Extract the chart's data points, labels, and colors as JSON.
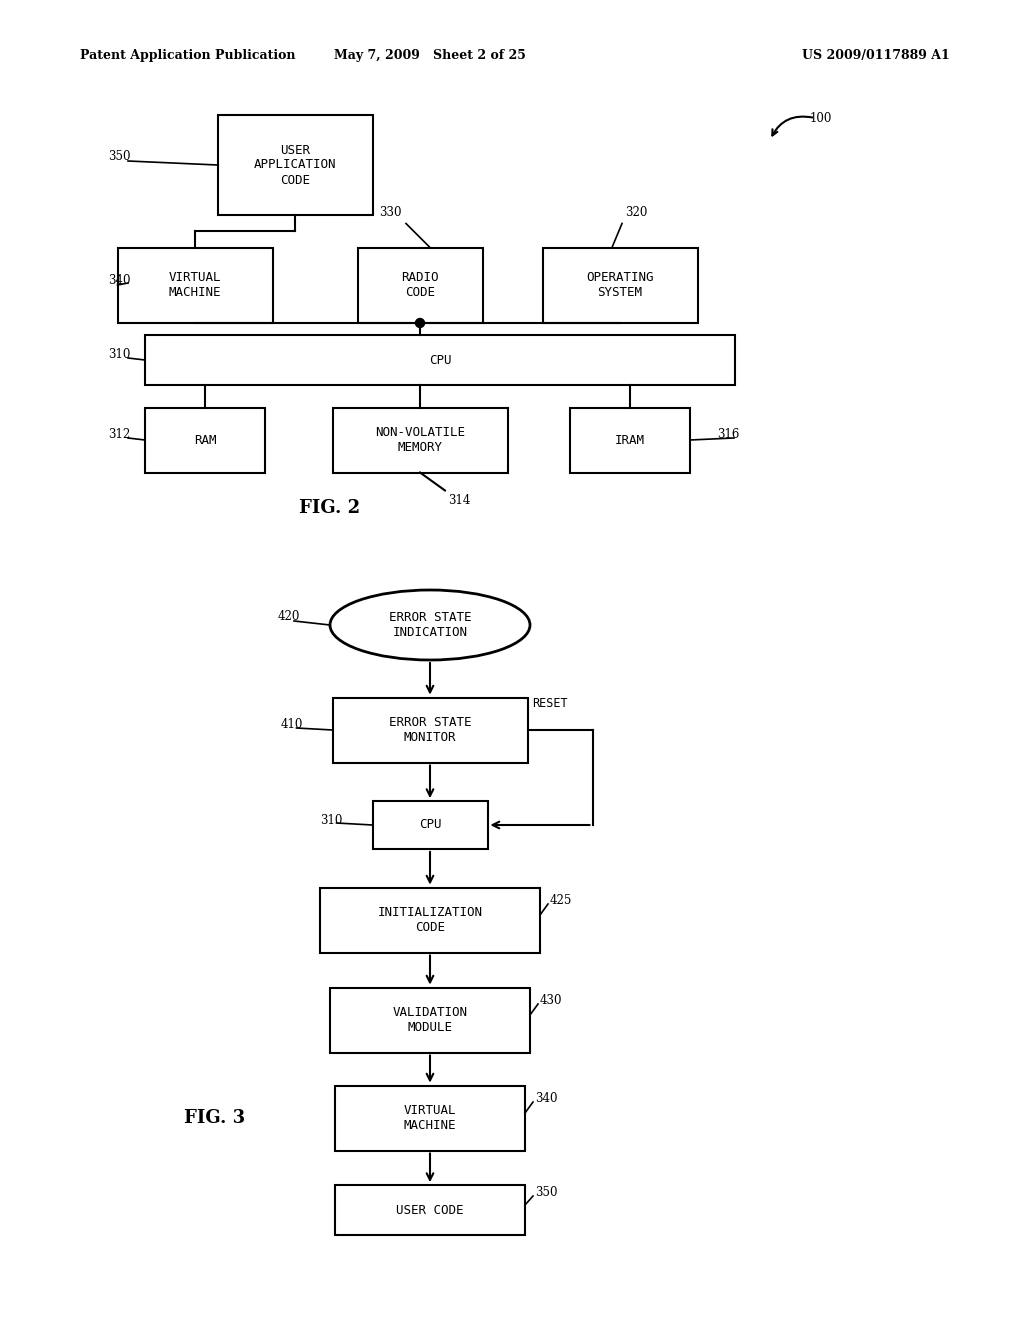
{
  "header_left": "Patent Application Publication",
  "header_mid": "May 7, 2009   Sheet 2 of 25",
  "header_right": "US 2009/0117889 A1",
  "bg_color": "#ffffff",
  "text_color": "#000000"
}
